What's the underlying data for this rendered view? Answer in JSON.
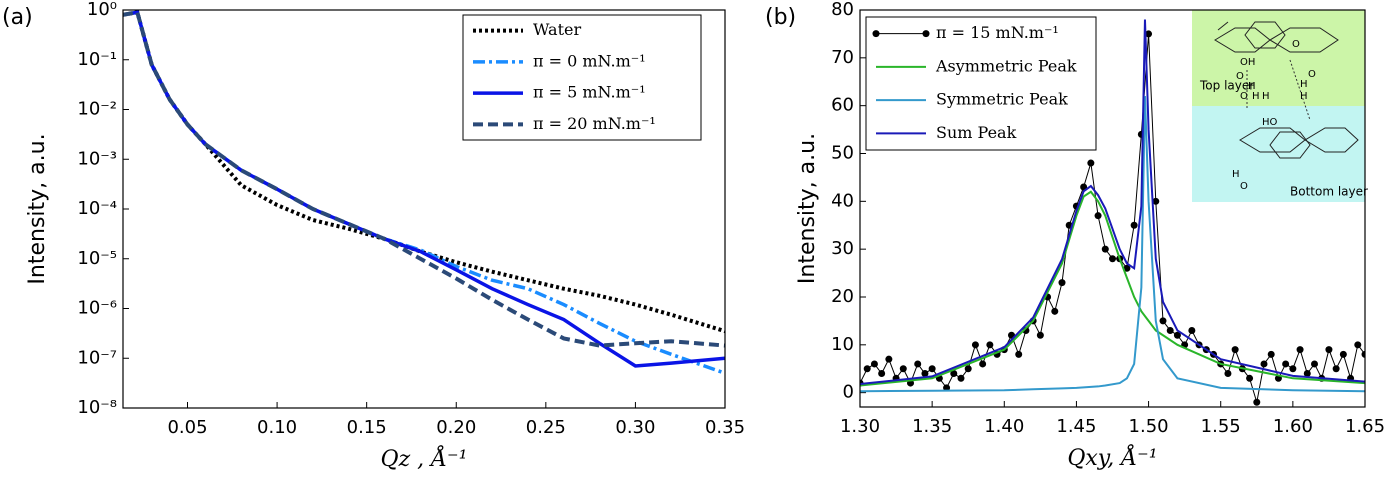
{
  "chart_data": [
    {
      "type": "line",
      "panel_label": "(a)",
      "ylabel": "Intensity, a.u.",
      "xlabel": "Qz , Å⁻¹",
      "ylog": true,
      "xlim": [
        0.014,
        0.35
      ],
      "ylim": [
        1e-08,
        1
      ],
      "xticks": [
        0.05,
        {
          "value": 0.1,
          "label": "0.10"
        },
        0.15,
        {
          "value": 0.2,
          "label": "0.20"
        },
        0.25,
        {
          "value": 0.3,
          "label": "0.30"
        },
        0.35
      ],
      "yticks": [
        {
          "value": 1e-08,
          "label": "10⁻⁸"
        },
        {
          "value": 1e-07,
          "label": "10⁻⁷"
        },
        {
          "value": 1e-06,
          "label": "10⁻⁶"
        },
        {
          "value": 1e-05,
          "label": "10⁻⁵"
        },
        {
          "value": 0.0001,
          "label": "10⁻⁴"
        },
        {
          "value": 0.001,
          "label": "10⁻³"
        },
        {
          "value": 0.01,
          "label": "10⁻²"
        },
        {
          "value": 0.1,
          "label": "10⁻¹"
        },
        {
          "value": 1,
          "label": "10⁰"
        }
      ],
      "legend": "upper right",
      "x": [
        0.014,
        0.022,
        0.03,
        0.04,
        0.05,
        0.06,
        0.08,
        0.1,
        0.12,
        0.14,
        0.16,
        0.18,
        0.2,
        0.22,
        0.24,
        0.26,
        0.28,
        0.3,
        0.32,
        0.35
      ],
      "series": [
        {
          "name": "Water",
          "color": "#000000",
          "linestyle": "dotted",
          "values": [
            0.8,
            0.9,
            0.08,
            0.016,
            0.005,
            0.002,
            0.0003,
            0.00012,
            6e-05,
            4e-05,
            2.5e-05,
            1.4e-05,
            8.5e-06,
            5.5e-06,
            3.7e-06,
            2.5e-06,
            1.8e-06,
            1.2e-06,
            7.5e-07,
            3.5e-07
          ]
        },
        {
          "name": "π = 0  mN.m⁻¹",
          "color": "#1a8cff",
          "linestyle": "dashdot",
          "values": [
            0.8,
            0.9,
            0.08,
            0.016,
            0.005,
            0.002,
            0.0006,
            0.00025,
            0.0001,
            5e-05,
            2.5e-05,
            1.5e-05,
            7e-06,
            3.7e-06,
            2.5e-06,
            1.2e-06,
            5e-07,
            2.2e-07,
            1.2e-07,
            5e-08
          ]
        },
        {
          "name": "π = 5  mN.m⁻¹",
          "color": "#0a14e6",
          "linestyle": "solid",
          "values": [
            0.8,
            0.9,
            0.08,
            0.016,
            0.005,
            0.002,
            0.0006,
            0.00025,
            0.0001,
            5e-05,
            2.5e-05,
            1.4e-05,
            6e-06,
            2.5e-06,
            1.2e-06,
            6e-07,
            2e-07,
            7e-08,
            8e-08,
            1e-07
          ]
        },
        {
          "name": "π = 20 mN.m⁻¹",
          "color": "#2b4a78",
          "linestyle": "dashed",
          "values": [
            0.8,
            0.9,
            0.08,
            0.016,
            0.005,
            0.002,
            0.0006,
            0.00025,
            0.0001,
            5e-05,
            2.5e-05,
            1e-05,
            4e-06,
            1.5e-06,
            6e-07,
            2.5e-07,
            1.8e-07,
            2e-07,
            2.2e-07,
            1.8e-07
          ]
        }
      ]
    },
    {
      "type": "line",
      "panel_label": "(b)",
      "ylabel": "Intensity, a.u.",
      "xlabel": "Qxy, Å⁻¹",
      "xlim": [
        1.3,
        1.65
      ],
      "ylim": [
        -3,
        80
      ],
      "xticks": [
        {
          "value": 1.3,
          "label": "1.30"
        },
        1.35,
        {
          "value": 1.4,
          "label": "1.40"
        },
        1.45,
        {
          "value": 1.5,
          "label": "1.50"
        },
        1.55,
        {
          "value": 1.6,
          "label": "1.60"
        },
        1.65
      ],
      "yticks": [
        0,
        10,
        20,
        30,
        40,
        50,
        60,
        70,
        80
      ],
      "legend": "upper left",
      "series": [
        {
          "name": "π = 15 mN.m⁻¹",
          "color": "#000000",
          "linestyle": "solid",
          "marker": "o",
          "x": [
            1.3,
            1.305,
            1.31,
            1.315,
            1.32,
            1.325,
            1.33,
            1.335,
            1.34,
            1.345,
            1.35,
            1.355,
            1.36,
            1.365,
            1.37,
            1.375,
            1.38,
            1.385,
            1.39,
            1.395,
            1.4,
            1.405,
            1.41,
            1.415,
            1.42,
            1.425,
            1.43,
            1.435,
            1.44,
            1.445,
            1.45,
            1.455,
            1.46,
            1.465,
            1.47,
            1.475,
            1.48,
            1.485,
            1.49,
            1.495,
            1.5,
            1.505,
            1.51,
            1.515,
            1.52,
            1.525,
            1.53,
            1.535,
            1.54,
            1.545,
            1.55,
            1.555,
            1.56,
            1.565,
            1.57,
            1.575,
            1.58,
            1.585,
            1.59,
            1.595,
            1.6,
            1.605,
            1.61,
            1.615,
            1.62,
            1.625,
            1.63,
            1.635,
            1.64,
            1.645,
            1.65
          ],
          "values": [
            2,
            5,
            6,
            4,
            7,
            3,
            5,
            2,
            6,
            4,
            5,
            3,
            1,
            4,
            3,
            5,
            10,
            6,
            10,
            8,
            9,
            12,
            8,
            13,
            15,
            12,
            20,
            17,
            23,
            35,
            39,
            43,
            48,
            37,
            30,
            28,
            28,
            26,
            35,
            54,
            75,
            40,
            15,
            13,
            12,
            10,
            13,
            10,
            9,
            8,
            6,
            4,
            9,
            5,
            3,
            -2,
            6,
            8,
            3,
            6,
            5,
            9,
            4,
            6,
            3,
            9,
            5,
            8,
            3,
            10,
            8
          ]
        },
        {
          "name": "Asymmetric Peak",
          "color": "#2ab52a",
          "linestyle": "solid",
          "x": [
            1.3,
            1.35,
            1.4,
            1.42,
            1.44,
            1.45,
            1.455,
            1.46,
            1.465,
            1.47,
            1.48,
            1.485,
            1.49,
            1.495,
            1.4975,
            1.5,
            1.505,
            1.51,
            1.52,
            1.55,
            1.6,
            1.65
          ],
          "values": [
            1.5,
            3,
            9,
            15,
            27,
            37,
            41,
            42,
            40,
            37,
            28,
            24,
            20,
            17,
            16,
            15,
            13,
            12,
            10,
            6,
            3,
            2
          ]
        },
        {
          "name": "Symmetric Peak",
          "color": "#3399cc",
          "linestyle": "solid",
          "x": [
            1.3,
            1.35,
            1.4,
            1.42,
            1.44,
            1.45,
            1.455,
            1.46,
            1.465,
            1.47,
            1.48,
            1.485,
            1.49,
            1.495,
            1.4975,
            1.5,
            1.505,
            1.51,
            1.52,
            1.55,
            1.6,
            1.65
          ],
          "values": [
            0.3,
            0.4,
            0.5,
            0.7,
            0.9,
            1,
            1.1,
            1.2,
            1.3,
            1.5,
            2,
            3,
            6,
            22,
            62,
            40,
            15,
            7,
            3,
            1,
            0.5,
            0.3
          ]
        },
        {
          "name": "Sum Peak",
          "color": "#1a1ab8",
          "linestyle": "solid",
          "x": [
            1.3,
            1.35,
            1.4,
            1.42,
            1.44,
            1.45,
            1.455,
            1.46,
            1.465,
            1.47,
            1.48,
            1.485,
            1.49,
            1.495,
            1.4975,
            1.5,
            1.505,
            1.51,
            1.52,
            1.55,
            1.6,
            1.65
          ],
          "values": [
            1.8,
            3.4,
            9.5,
            15.7,
            27.9,
            38,
            42.1,
            43.2,
            41.3,
            38.5,
            30,
            27,
            26,
            39,
            78,
            55,
            28,
            19,
            13,
            7,
            3.5,
            2.3
          ]
        }
      ],
      "inset": {
        "top_label": "Top layer",
        "bottom_label": "Bottom layer",
        "atoms": [
          "OH",
          "O",
          "H",
          "O",
          "H",
          "H",
          "H",
          "HO",
          "O",
          "O",
          "H",
          "H",
          "O"
        ]
      }
    }
  ]
}
